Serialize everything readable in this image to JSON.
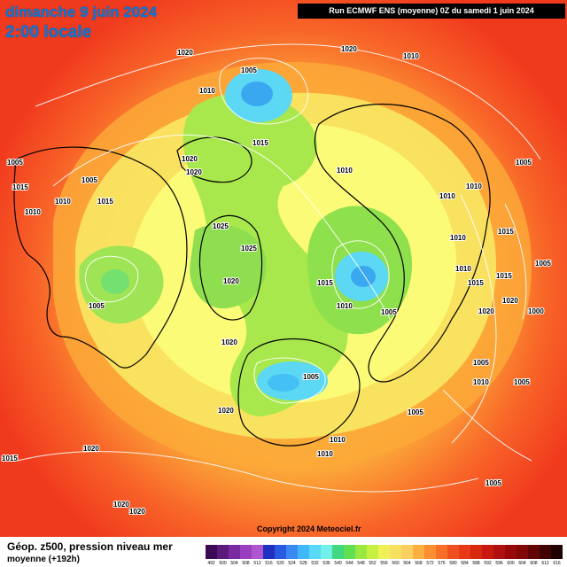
{
  "header": {
    "date": "dimanche 9 juin 2024",
    "time": "2:00 locale",
    "run": "Run ECMWF ENS (moyenne) 0Z du samedi 1 juin 2024"
  },
  "copyright": "Copyright 2024 Meteociel.fr",
  "footer": {
    "title": "Géop. z500, pression niveau mer",
    "subtitle": "moyenne   (+192h)"
  },
  "legend": {
    "values": [
      "492",
      "500",
      "504",
      "508",
      "512",
      "516",
      "520",
      "524",
      "528",
      "532",
      "536",
      "540",
      "544",
      "548",
      "552",
      "556",
      "560",
      "564",
      "568",
      "572",
      "576",
      "580",
      "584",
      "588",
      "592",
      "596",
      "600",
      "604",
      "608",
      "612",
      "616"
    ],
    "colors": [
      "#3b0a55",
      "#5a1a7c",
      "#7a2aa0",
      "#9a3ec0",
      "#b055d0",
      "#2030c0",
      "#2a5ae0",
      "#3a88f0",
      "#40b8f8",
      "#5ad8f8",
      "#70f0e8",
      "#40d880",
      "#60e050",
      "#9ae840",
      "#c8f040",
      "#f0f058",
      "#f8e060",
      "#fcd060",
      "#fcb040",
      "#fc9030",
      "#f87028",
      "#f05020",
      "#e83818",
      "#d82810",
      "#c81810",
      "#b01010",
      "#980808",
      "#800808",
      "#600404",
      "#400202",
      "#200000"
    ]
  },
  "pressure_labels": [
    "1020",
    "1005",
    "1010",
    "1015",
    "1025",
    "1000"
  ],
  "colors": {
    "ocean_red": "#f03a1e",
    "orange": "#fc8c2c",
    "yellow": "#fcfc5c",
    "green": "#5ad650",
    "cyan": "#5cd6f8"
  },
  "map_features": [
    "north-pole-view",
    "north-america",
    "greenland",
    "europe",
    "asia",
    "pacific-low",
    "siberia-low",
    "scandinavia-low"
  ]
}
